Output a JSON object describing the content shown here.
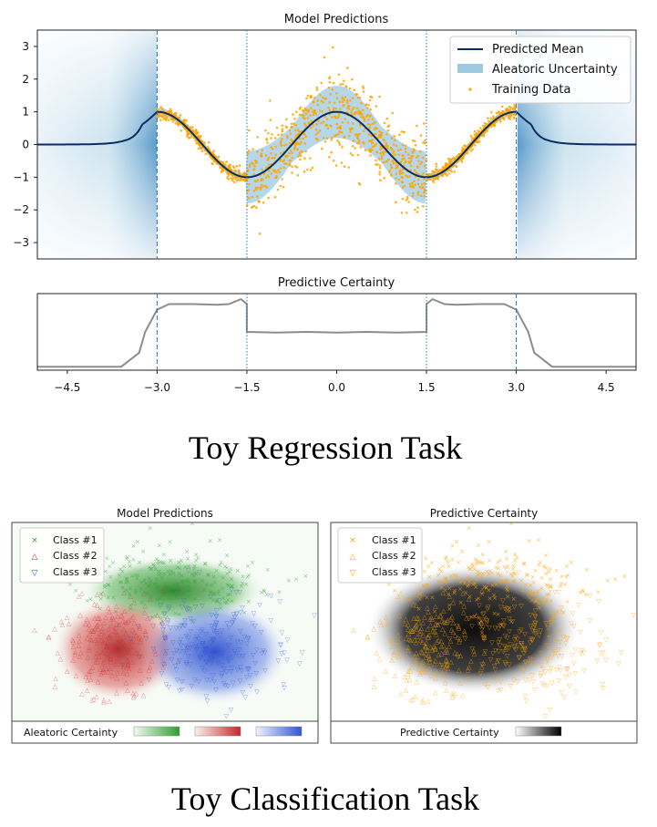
{
  "chart_data": [
    {
      "type": "line",
      "title": "Model Predictions",
      "xlim": [
        -5.0,
        5.0
      ],
      "ylim": [
        -3.5,
        3.5
      ],
      "yticks": [
        -3,
        -2,
        -1,
        0,
        1,
        2,
        3
      ],
      "vlines_dashed": [
        -3.0,
        3.0
      ],
      "vlines_dotted": [
        -1.5,
        1.5
      ],
      "legend": [
        "Predicted Mean",
        "Aleatoric Uncertainty",
        "Training Data"
      ],
      "legend_position": "top-right",
      "colors": {
        "mean": "#0b2d5e",
        "uncertainty": "#9ecae1",
        "data": "#ffa500",
        "vline": "#1f77b4"
      }
    },
    {
      "type": "line",
      "title": "Predictive Certainty",
      "xlim": [
        -5.0,
        5.0
      ],
      "xticks": [
        "−4.5",
        "−3.0",
        "−1.5",
        "0.0",
        "1.5",
        "3.0",
        "4.5"
      ],
      "xtick_values": [
        -4.5,
        -3.0,
        -1.5,
        0.0,
        1.5,
        3.0,
        4.5
      ],
      "x": [
        -5.0,
        -3.6,
        -3.3,
        -3.2,
        -3.0,
        -2.8,
        -2.4,
        -2.0,
        -1.8,
        -1.6,
        -1.5,
        -1.5,
        -1.0,
        -0.5,
        0.0,
        0.5,
        1.0,
        1.5,
        1.5,
        1.6,
        1.8,
        2.0,
        2.4,
        2.8,
        3.0,
        3.2,
        3.3,
        3.6,
        5.0
      ],
      "y": [
        0.0,
        0.0,
        0.2,
        0.5,
        0.82,
        0.9,
        0.9,
        0.89,
        0.9,
        0.97,
        0.9,
        0.5,
        0.49,
        0.5,
        0.49,
        0.5,
        0.49,
        0.5,
        0.9,
        0.97,
        0.9,
        0.89,
        0.9,
        0.9,
        0.82,
        0.5,
        0.2,
        0.0,
        0.0
      ],
      "ylim": [
        -0.05,
        1.05
      ],
      "color": "#888888"
    },
    {
      "type": "scatter",
      "title": "Model Predictions",
      "legend": [
        "Class #1",
        "Class #2",
        "Class #3"
      ],
      "legend_position": "top-left",
      "colors": [
        "#2ca02c",
        "#d62728",
        "#1f4fd6"
      ],
      "colorbar_label": "Aleatoric Certainty"
    },
    {
      "type": "scatter",
      "title": "Predictive Certainty",
      "legend": [
        "Class #1",
        "Class #2",
        "Class #3"
      ],
      "legend_position": "top-left",
      "colors": [
        "#ffa500",
        "#ffa500",
        "#ffa500"
      ],
      "colorbar_label": "Predictive Certainty"
    }
  ],
  "captions": {
    "regression": "Toy Regression Task",
    "classification": "Toy Classification Task"
  }
}
